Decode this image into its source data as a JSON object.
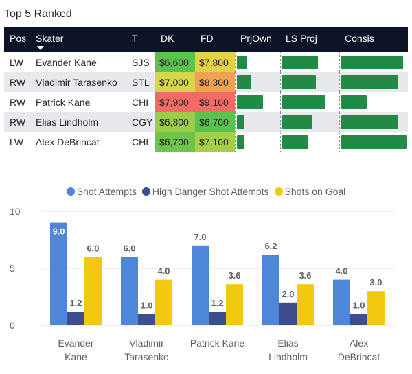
{
  "table": {
    "title": "Top 5 Ranked",
    "columns": [
      "Pos",
      "Skater",
      "T",
      "DK",
      "FD",
      "PrjOwn",
      "LS Proj",
      "Consis"
    ],
    "rows": [
      {
        "pos": "LW",
        "skater": "Evander Kane",
        "team": "SJS",
        "dk": "$6,600",
        "fd": "$7,800",
        "dk_color": "#5bc24d",
        "fd_color": "#e3d247",
        "prjown": 0.22,
        "lsproj": 0.62,
        "consis": 0.93
      },
      {
        "pos": "RW",
        "skater": "Vladimir Tarasenko",
        "team": "STL",
        "dk": "$7,000",
        "fd": "$8,300",
        "dk_color": "#d6d64a",
        "fd_color": "#f0a254",
        "prjown": 0.34,
        "lsproj": 0.58,
        "consis": 0.86
      },
      {
        "pos": "RW",
        "skater": "Patrick Kane",
        "team": "CHI",
        "dk": "$7,900",
        "fd": "$9,100",
        "dk_color": "#f26b65",
        "fd_color": "#f26b65",
        "prjown": 0.62,
        "lsproj": 0.75,
        "consis": 0.38
      },
      {
        "pos": "RW",
        "skater": "Elias Lindholm",
        "team": "CGY",
        "dk": "$6,800",
        "fd": "$6,700",
        "dk_color": "#9ccc4a",
        "fd_color": "#5bc24d",
        "prjown": 0.18,
        "lsproj": 0.52,
        "consis": 0.86
      },
      {
        "pos": "LW",
        "skater": "Alex DeBrincat",
        "team": "CHI",
        "dk": "$6,700",
        "fd": "$7,100",
        "dk_color": "#6fc54b",
        "fd_color": "#a6cf49",
        "prjown": 0.18,
        "lsproj": 0.45,
        "consis": 0.98
      }
    ]
  },
  "chart_data": {
    "type": "bar",
    "categories": [
      [
        "Evander",
        "Kane"
      ],
      [
        "Vladimir",
        "Tarasenko"
      ],
      [
        "Patrick Kane"
      ],
      [
        "Elias",
        "Lindholm"
      ],
      [
        "Alex",
        "DeBrincat"
      ]
    ],
    "series": [
      {
        "name": "Shot Attempts",
        "color": "#4e86d8",
        "values": [
          9.0,
          6.0,
          7.0,
          6.2,
          4.0
        ],
        "labels": [
          "9.0",
          "6.0",
          "7.0",
          "6.2",
          "4.0"
        ]
      },
      {
        "name": "High Danger Shot Attempts",
        "color": "#3d4e8c",
        "values": [
          1.2,
          1.0,
          1.2,
          2.0,
          1.0
        ],
        "labels": [
          "1.2",
          "1.0",
          "1.2",
          "2.0",
          "1.0"
        ]
      },
      {
        "name": "Shots on Goal",
        "color": "#f2c811",
        "values": [
          6.0,
          4.0,
          3.6,
          3.6,
          3.0
        ],
        "labels": [
          "6.0",
          "4.0",
          "3.6",
          "3.6",
          "3.0"
        ]
      }
    ],
    "yticks": [
      "0",
      "5",
      "10"
    ],
    "ylim": [
      0,
      10
    ],
    "legend_position": "top-center",
    "grid": true
  }
}
